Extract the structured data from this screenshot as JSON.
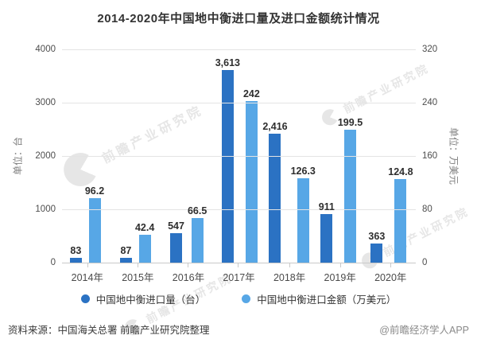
{
  "title": "2014-2020年中国地中衡进口量及进口金额统计情况",
  "watermark": {
    "text": "前瞻产业研究院"
  },
  "chart_data": {
    "type": "bar",
    "categories": [
      "2014年",
      "2015年",
      "2016年",
      "2017年",
      "2018年",
      "2019年",
      "2020年"
    ],
    "series": [
      {
        "name": "中国地中衡进口量（台）",
        "axis": "left",
        "color": "#2b72c3",
        "values": [
          83,
          87,
          547,
          3613,
          2416,
          911,
          363
        ],
        "labels": [
          "83",
          "87",
          "547",
          "3,613",
          "2,416",
          "911",
          "363"
        ]
      },
      {
        "name": "中国地中衡进口金额（万美元）",
        "axis": "right",
        "color": "#57a7e6",
        "values": [
          96.2,
          42.4,
          66.5,
          242,
          126.3,
          199.5,
          124.8
        ],
        "labels": [
          "96.2",
          "42.4",
          "66.5",
          "242",
          "126.3",
          "199.5",
          "124.8"
        ]
      }
    ],
    "left_axis": {
      "name": "单位：台",
      "ticks": [
        "4000",
        "3000",
        "2000",
        "1000",
        "0"
      ],
      "max": 4000
    },
    "right_axis": {
      "name": "单位：万美元",
      "ticks": [
        "320",
        "240",
        "160",
        "80",
        "0"
      ],
      "max": 320
    },
    "grid": true,
    "legend_position": "bottom"
  },
  "footer": {
    "source": "资料来源：中国海关总署 前瞻产业研究院整理",
    "credit": "@前瞻经济学人APP"
  }
}
